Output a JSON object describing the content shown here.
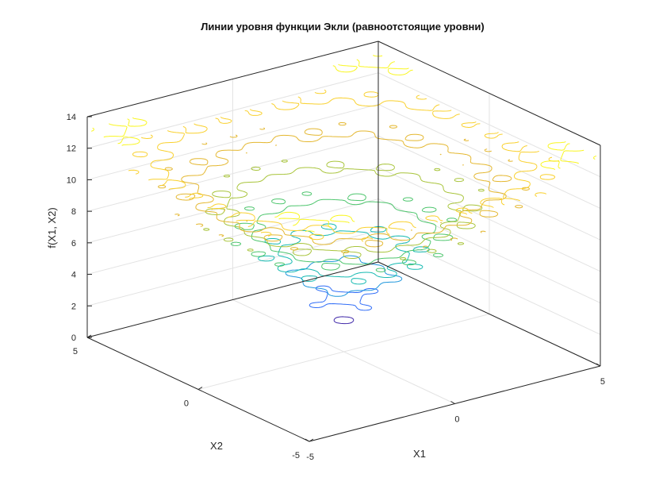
{
  "chart_data": {
    "type": "contour3",
    "title": "Линии уровня функции Экли (равноотстоящие уровни)",
    "xlabel": "X1",
    "ylabel": "X2",
    "zlabel": "f(X1, X2)",
    "xlim": [
      -5,
      5
    ],
    "ylim": [
      -5,
      5
    ],
    "zlim": [
      0,
      14
    ],
    "xticks": [
      -5,
      0,
      5
    ],
    "yticks": [
      -5,
      0,
      5
    ],
    "zticks": [
      0,
      2,
      4,
      6,
      8,
      10,
      12,
      14
    ],
    "xtick_labels": [
      "-5",
      "0",
      "5"
    ],
    "ytick_labels": [
      "-5",
      "0",
      "5"
    ],
    "ztick_labels": [
      "0",
      "2",
      "4",
      "6",
      "8",
      "10",
      "12",
      "14"
    ],
    "grid": true,
    "function": "Ackley",
    "levels": [
      2.0,
      3.4,
      4.8,
      6.2,
      7.6,
      9.0,
      10.4,
      11.8,
      13.2
    ],
    "colormap": [
      "#3e26a8",
      "#2f6cf7",
      "#1d96dc",
      "#14b9b1",
      "#4cc56c",
      "#a8c43a",
      "#e4b72f",
      "#f9d02c",
      "#f9f61e"
    ]
  }
}
